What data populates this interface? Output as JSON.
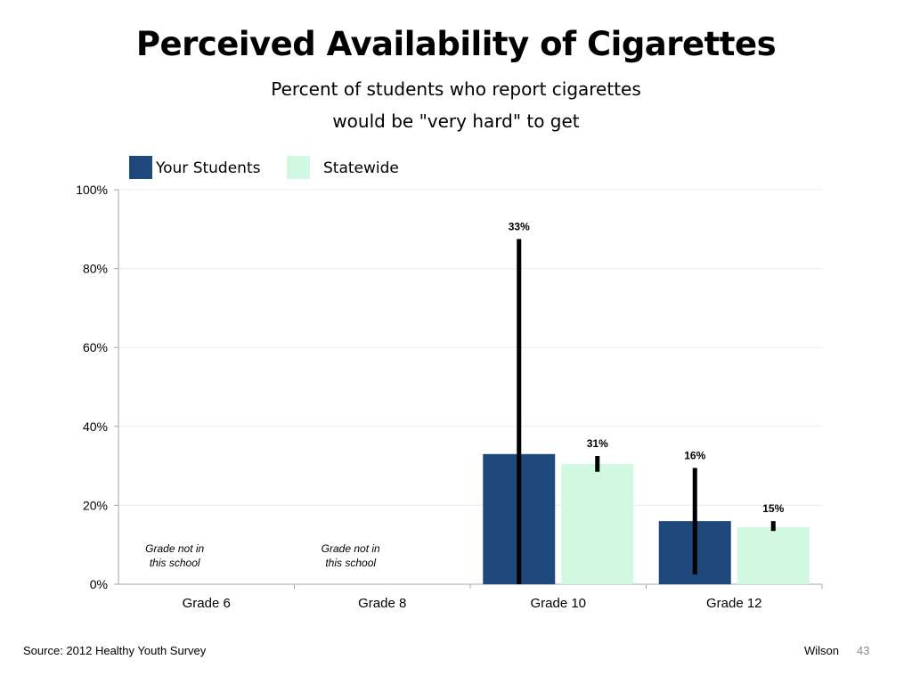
{
  "slide": {
    "title": "Perceived Availability of Cigarettes",
    "subtitle_line1": "Percent of students who report cigarettes",
    "subtitle_line2": "would be \"very hard\" to get",
    "source": "Source: 2012 Healthy Youth Survey",
    "author": "Wilson",
    "page_number": "43"
  },
  "chart_data": {
    "type": "bar",
    "categories": [
      "Grade 6",
      "Grade 8",
      "Grade 10",
      "Grade 12"
    ],
    "series": [
      {
        "name": "Your Students",
        "color": "#1f497d",
        "values": [
          null,
          null,
          33,
          16
        ],
        "error_low": [
          null,
          null,
          0,
          2.5
        ],
        "error_high": [
          null,
          null,
          87.5,
          29.5
        ],
        "labels": [
          "",
          "",
          "33%",
          "16%"
        ]
      },
      {
        "name": "Statewide",
        "color": "#d1f8e0",
        "values": [
          null,
          null,
          30.5,
          14.5
        ],
        "error_low": [
          null,
          null,
          28.5,
          13.5
        ],
        "error_high": [
          null,
          null,
          32.5,
          16
        ],
        "labels": [
          "",
          "",
          "31%",
          "15%"
        ]
      }
    ],
    "annotations": [
      {
        "category": "Grade 6",
        "lines": [
          "Grade not in",
          "this school"
        ]
      },
      {
        "category": "Grade 8",
        "lines": [
          "Grade not in",
          "this school"
        ]
      }
    ],
    "ylim": [
      0,
      100
    ],
    "yticks": [
      0,
      20,
      40,
      60,
      80,
      100
    ],
    "ytick_labels": [
      "0%",
      "20%",
      "40%",
      "60%",
      "80%",
      "100%"
    ],
    "xlabel": "",
    "ylabel": "",
    "grid": true,
    "legend": "top-left"
  }
}
